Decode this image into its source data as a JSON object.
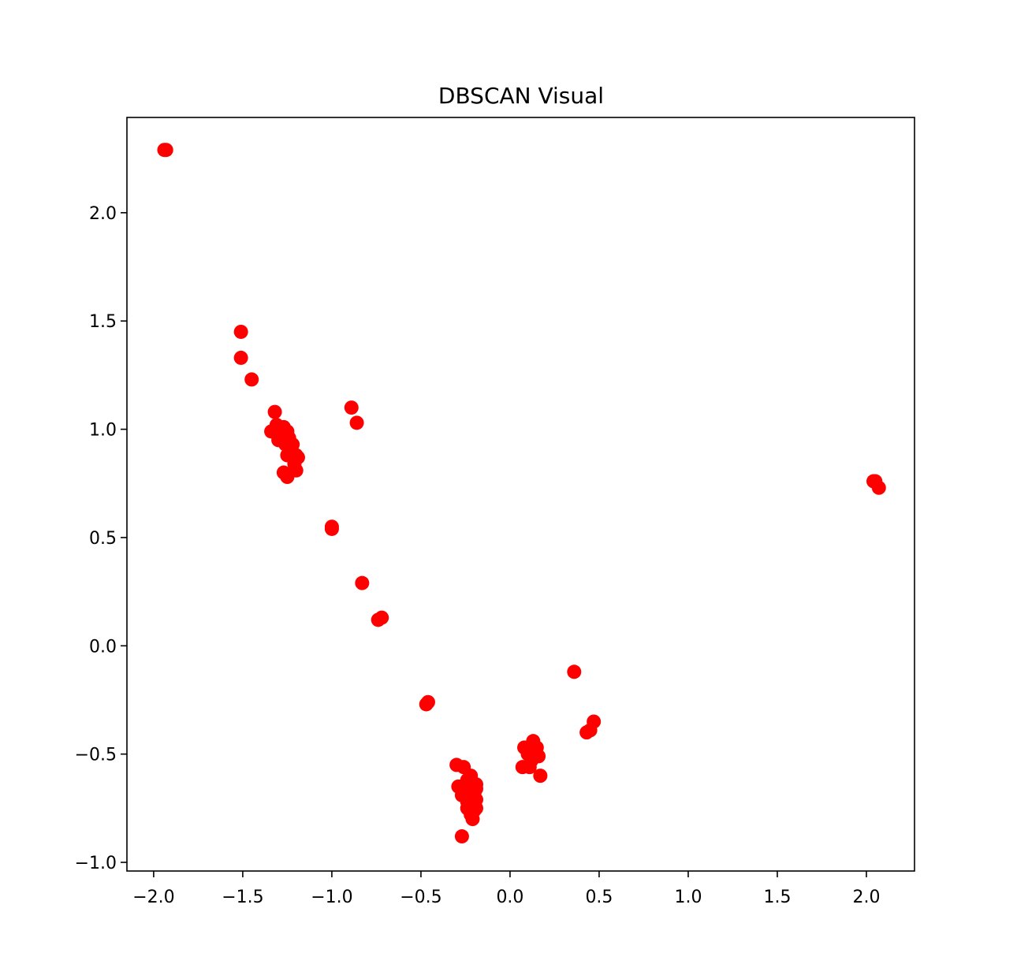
{
  "chart_data": {
    "type": "scatter",
    "title": "DBSCAN Visual",
    "xlabel": "",
    "ylabel": "",
    "xlim": [
      -2.15,
      2.27
    ],
    "ylim": [
      -1.04,
      2.44
    ],
    "xticks": [
      -2.0,
      -1.5,
      -1.0,
      -0.5,
      0.0,
      0.5,
      1.0,
      1.5,
      2.0
    ],
    "xtick_labels": [
      "−2.0",
      "−1.5",
      "−1.0",
      "−0.5",
      "0.0",
      "0.5",
      "1.0",
      "1.5",
      "2.0"
    ],
    "yticks": [
      -1.0,
      -0.5,
      0.0,
      0.5,
      1.0,
      1.5,
      2.0
    ],
    "ytick_labels": [
      "−1.0",
      "−0.5",
      "0.0",
      "0.5",
      "1.0",
      "1.5",
      "2.0"
    ],
    "grid": false,
    "marker_color": "#ff0000",
    "series": [
      {
        "color": "#ff0000",
        "points": [
          [
            -1.94,
            2.29
          ],
          [
            -1.93,
            2.29
          ],
          [
            -1.51,
            1.45
          ],
          [
            -1.51,
            1.33
          ],
          [
            -1.45,
            1.23
          ],
          [
            -1.32,
            1.08
          ],
          [
            -1.34,
            0.99
          ],
          [
            -1.31,
            1.02
          ],
          [
            -1.27,
            1.01
          ],
          [
            -1.25,
            0.99
          ],
          [
            -1.3,
            0.95
          ],
          [
            -1.28,
            0.97
          ],
          [
            -1.24,
            0.96
          ],
          [
            -1.22,
            0.93
          ],
          [
            -1.26,
            0.93
          ],
          [
            -1.23,
            0.89
          ],
          [
            -1.25,
            0.88
          ],
          [
            -1.2,
            0.88
          ],
          [
            -1.19,
            0.87
          ],
          [
            -1.21,
            0.84
          ],
          [
            -1.2,
            0.81
          ],
          [
            -1.27,
            0.8
          ],
          [
            -1.25,
            0.78
          ],
          [
            -0.89,
            1.1
          ],
          [
            -0.86,
            1.03
          ],
          [
            -1.0,
            0.55
          ],
          [
            -1.0,
            0.54
          ],
          [
            -0.83,
            0.29
          ],
          [
            -0.74,
            0.12
          ],
          [
            -0.72,
            0.13
          ],
          [
            -0.47,
            -0.27
          ],
          [
            -0.46,
            -0.26
          ],
          [
            -0.3,
            -0.55
          ],
          [
            -0.26,
            -0.56
          ],
          [
            -0.29,
            -0.65
          ],
          [
            -0.24,
            -0.62
          ],
          [
            -0.22,
            -0.6
          ],
          [
            -0.21,
            -0.63
          ],
          [
            -0.19,
            -0.64
          ],
          [
            -0.19,
            -0.66
          ],
          [
            -0.23,
            -0.65
          ],
          [
            -0.27,
            -0.69
          ],
          [
            -0.2,
            -0.68
          ],
          [
            -0.22,
            -0.7
          ],
          [
            -0.19,
            -0.71
          ],
          [
            -0.24,
            -0.72
          ],
          [
            -0.21,
            -0.73
          ],
          [
            -0.19,
            -0.75
          ],
          [
            -0.24,
            -0.75
          ],
          [
            -0.22,
            -0.78
          ],
          [
            -0.2,
            -0.76
          ],
          [
            -0.21,
            -0.8
          ],
          [
            -0.27,
            -0.88
          ],
          [
            0.08,
            -0.47
          ],
          [
            0.13,
            -0.44
          ],
          [
            0.15,
            -0.47
          ],
          [
            0.1,
            -0.5
          ],
          [
            0.16,
            -0.51
          ],
          [
            0.12,
            -0.53
          ],
          [
            0.07,
            -0.56
          ],
          [
            0.11,
            -0.56
          ],
          [
            0.17,
            -0.6
          ],
          [
            0.36,
            -0.12
          ],
          [
            0.43,
            -0.4
          ],
          [
            0.45,
            -0.39
          ],
          [
            0.47,
            -0.35
          ],
          [
            2.04,
            0.76
          ],
          [
            2.05,
            0.76
          ],
          [
            2.07,
            0.73
          ]
        ]
      }
    ]
  }
}
